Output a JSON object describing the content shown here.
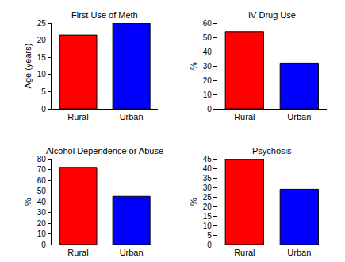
{
  "chart_data": [
    {
      "type": "bar",
      "title": "First Use of Meth",
      "ylabel": "Age (years)",
      "categories": [
        "Rural",
        "Urban"
      ],
      "values": [
        21.5,
        25
      ],
      "colors": [
        "#ff0000",
        "#0000ff"
      ],
      "ylim": [
        0,
        25
      ],
      "yticks": [
        0,
        5,
        10,
        15,
        20,
        25
      ],
      "grid": false
    },
    {
      "type": "bar",
      "title": "IV Drug Use",
      "ylabel": "%",
      "categories": [
        "Rural",
        "Urban"
      ],
      "values": [
        54,
        32
      ],
      "colors": [
        "#ff0000",
        "#0000ff"
      ],
      "ylim": [
        0,
        60
      ],
      "yticks": [
        0,
        10,
        20,
        30,
        40,
        50,
        60
      ],
      "grid": false
    },
    {
      "type": "bar",
      "title": "Alcohol Dependence or Abuse",
      "ylabel": "%",
      "categories": [
        "Rural",
        "Urban"
      ],
      "values": [
        72,
        45
      ],
      "colors": [
        "#ff0000",
        "#0000ff"
      ],
      "ylim": [
        0,
        80
      ],
      "yticks": [
        0,
        10,
        20,
        30,
        40,
        50,
        60,
        70,
        80
      ],
      "grid": false
    },
    {
      "type": "bar",
      "title": "Psychosis",
      "ylabel": "%",
      "categories": [
        "Rural",
        "Urban"
      ],
      "values": [
        45,
        29
      ],
      "colors": [
        "#ff0000",
        "#0000ff"
      ],
      "ylim": [
        0,
        45
      ],
      "yticks": [
        0,
        5,
        10,
        15,
        20,
        25,
        30,
        35,
        40,
        45
      ],
      "grid": false
    }
  ]
}
